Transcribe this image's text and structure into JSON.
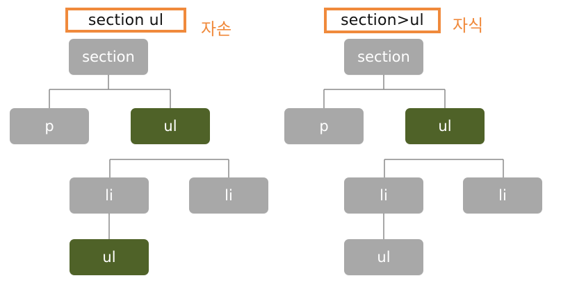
{
  "colors": {
    "accent_border": "#f08a3c",
    "caption": "#f08a3c",
    "node_default": "#a8a8a8",
    "node_highlight": "#4f6228",
    "connector": "#8a8a8a"
  },
  "left_panel": {
    "selector": "section ul",
    "caption": "자손",
    "nodes": {
      "root": {
        "label": "section",
        "highlighted": false
      },
      "p": {
        "label": "p",
        "highlighted": false
      },
      "ul": {
        "label": "ul",
        "highlighted": true
      },
      "li_1": {
        "label": "li",
        "highlighted": false
      },
      "li_2": {
        "label": "li",
        "highlighted": false
      },
      "nested_ul": {
        "label": "ul",
        "highlighted": true
      }
    }
  },
  "right_panel": {
    "selector": "section>ul",
    "caption": "자식",
    "nodes": {
      "root": {
        "label": "section",
        "highlighted": false
      },
      "p": {
        "label": "p",
        "highlighted": false
      },
      "ul": {
        "label": "ul",
        "highlighted": true
      },
      "li_1": {
        "label": "li",
        "highlighted": false
      },
      "li_2": {
        "label": "li",
        "highlighted": false
      },
      "nested_ul": {
        "label": "ul",
        "highlighted": false
      }
    }
  }
}
